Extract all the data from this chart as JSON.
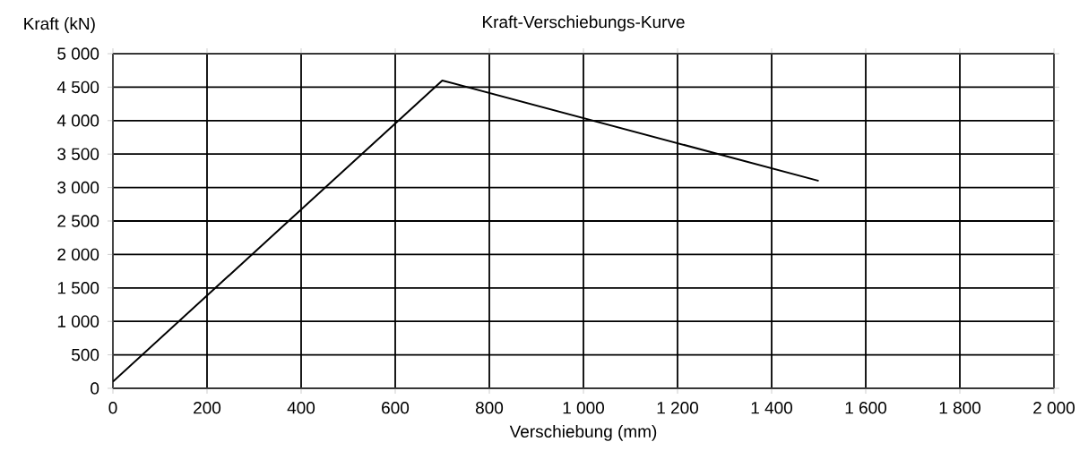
{
  "chart_data": {
    "type": "line",
    "title": "Kraft-Verschiebungs-Kurve",
    "xlabel": "Verschiebung (mm)",
    "ylabel": "Kraft (kN)",
    "x": [
      0,
      700,
      1500
    ],
    "series": [
      {
        "color": "#000000",
        "values": [
          100,
          4600,
          3100
        ]
      }
    ],
    "xlim": [
      0,
      2000
    ],
    "ylim": [
      0,
      5000
    ],
    "xticks": [
      0,
      200,
      400,
      600,
      800,
      {
        "value": 1000,
        "label": "1 000"
      },
      {
        "value": 1200,
        "label": "1 200"
      },
      {
        "value": 1400,
        "label": "1 400"
      },
      {
        "value": 1600,
        "label": "1 600"
      },
      {
        "value": 1800,
        "label": "1 800"
      },
      {
        "value": 2000,
        "label": "2 000"
      }
    ],
    "yticks": [
      0,
      500,
      {
        "value": 1000,
        "label": "1 000"
      },
      {
        "value": 1500,
        "label": "1 500"
      },
      {
        "value": 2000,
        "label": "2 000"
      },
      {
        "value": 2500,
        "label": "2 500"
      },
      {
        "value": 3000,
        "label": "3 000"
      },
      {
        "value": 3500,
        "label": "3 500"
      },
      {
        "value": 4000,
        "label": "4 000"
      },
      {
        "value": 4500,
        "label": "4 500"
      },
      {
        "value": 5000,
        "label": "5 000"
      }
    ],
    "grid": true
  }
}
